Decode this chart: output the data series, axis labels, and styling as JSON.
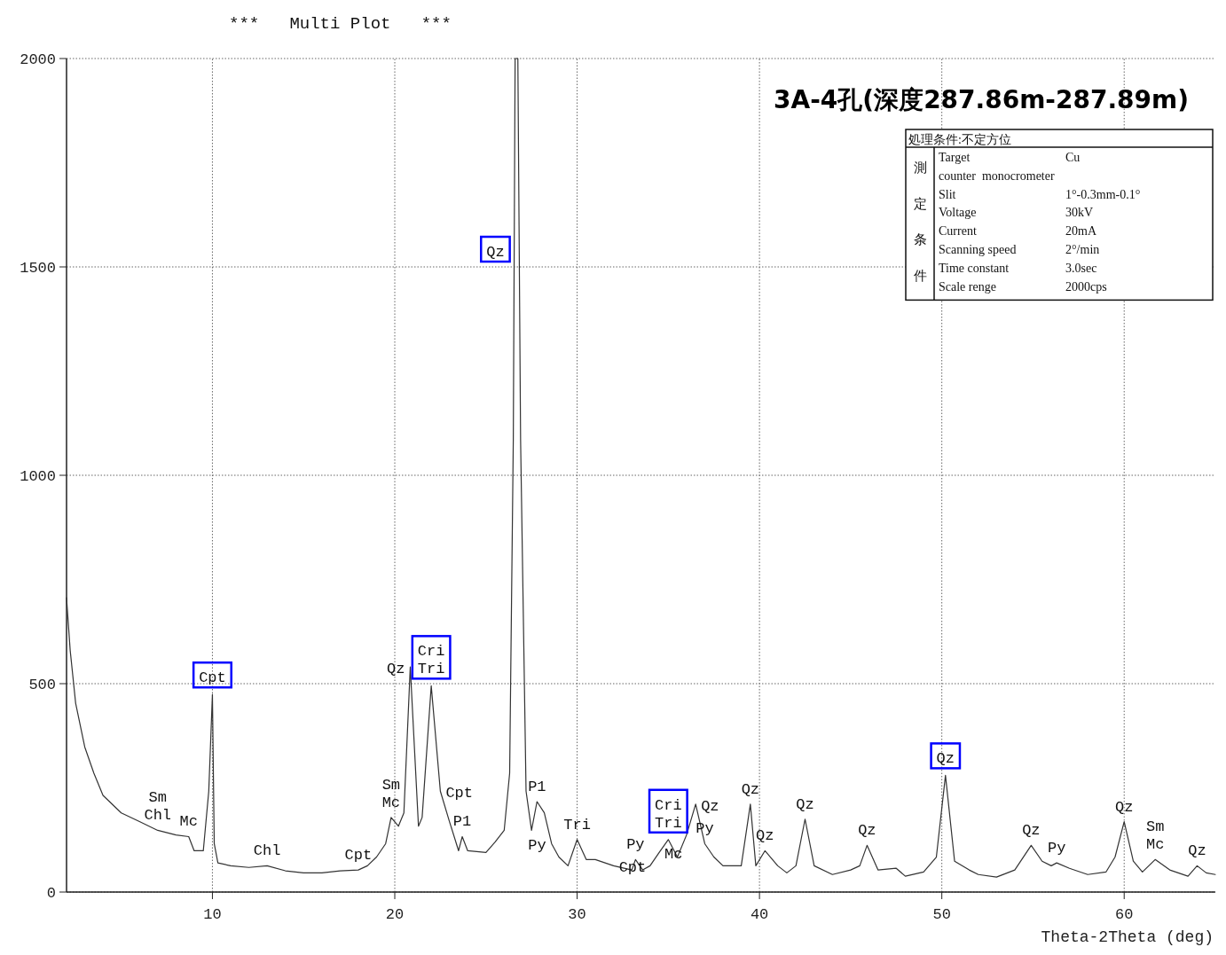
{
  "chart_data": {
    "type": "line",
    "title": "***   Multi Plot   ***",
    "subtitle": "3A-4孔(深度287.86m-287.89m)",
    "xlabel": "Theta-2Theta (deg)",
    "xlim": [
      2,
      65
    ],
    "xticks": [
      10,
      20,
      30,
      40,
      50,
      60
    ],
    "ylim": [
      0,
      2000
    ],
    "yticks": [
      0,
      500,
      1000,
      1500,
      2000
    ],
    "grid": true,
    "marker": "none",
    "line_style": "solid",
    "series": [
      {
        "color": "#333333",
        "x": [
          2,
          2.2,
          2.5,
          3,
          3.5,
          4,
          5,
          6,
          7,
          8,
          8.7,
          9,
          9.5,
          9.8,
          10,
          10.1,
          10.3,
          11,
          12,
          13,
          14,
          15,
          16,
          17,
          18,
          18.5,
          19,
          19.5,
          19.8,
          20.2,
          20.5,
          20.85,
          21.3,
          21.5,
          22,
          22.5,
          23,
          23.5,
          23.7,
          24,
          25,
          25.5,
          26,
          26.3,
          26.5,
          26.6,
          26.75,
          26.9,
          27.2,
          27.5,
          27.8,
          28.2,
          28.6,
          29,
          29.5,
          30,
          30.5,
          31,
          32,
          33,
          33.2,
          33.6,
          34,
          34.5,
          35,
          35.5,
          36,
          36.5,
          37,
          37.5,
          38,
          39,
          39.5,
          39.8,
          40.3,
          41,
          41.5,
          42,
          42.5,
          43,
          44,
          45,
          45.5,
          45.9,
          46.5,
          47.5,
          48,
          49,
          49.7,
          50.2,
          50.7,
          51.5,
          52,
          53,
          54,
          54.9,
          55.5,
          56,
          56.3,
          57,
          58,
          59,
          59.5,
          60,
          60.5,
          61,
          61.7,
          62.5,
          63.5,
          64,
          64.5,
          65
        ],
        "values": [
          706,
          580,
          453,
          348,
          285,
          232,
          190,
          169,
          148,
          137,
          133,
          99,
          99,
          242,
          474,
          116,
          70,
          63,
          59,
          63,
          51,
          46,
          46,
          51,
          53,
          63,
          84,
          116,
          179,
          158,
          190,
          540,
          158,
          179,
          495,
          242,
          169,
          99,
          133,
          99,
          95,
          120,
          148,
          285,
          1085,
          2000,
          2000,
          1085,
          242,
          148,
          217,
          190,
          116,
          84,
          63,
          126,
          78,
          78,
          63,
          53,
          78,
          53,
          63,
          95,
          126,
          84,
          137,
          211,
          116,
          84,
          63,
          63,
          211,
          63,
          99,
          63,
          46,
          63,
          175,
          63,
          42,
          53,
          63,
          112,
          53,
          57,
          38,
          48,
          84,
          280,
          74,
          53,
          42,
          36,
          53,
          112,
          74,
          63,
          70,
          57,
          42,
          48,
          84,
          169,
          74,
          48,
          78,
          53,
          38,
          63,
          46,
          42
        ]
      }
    ],
    "annotations": [
      {
        "text": "Cpt",
        "x": 10,
        "y": 474
      },
      {
        "text": "Sm\nChl",
        "x": 7,
        "y": 148
      },
      {
        "text": "Mc",
        "x": 8.7,
        "y": 133
      },
      {
        "text": "Chl",
        "x": 13,
        "y": 63
      },
      {
        "text": "Cpt",
        "x": 18,
        "y": 53
      },
      {
        "text": "Sm\nMc",
        "x": 19.8,
        "y": 179
      },
      {
        "text": "Qz",
        "x": 20.85,
        "y": 540
      },
      {
        "text": "Cri\nTri",
        "x": 22,
        "y": 495
      },
      {
        "text": "Cpt",
        "x": 22.5,
        "y": 242
      },
      {
        "text": "P1",
        "x": 23.7,
        "y": 133
      },
      {
        "text": "Qz",
        "x": 26.55,
        "y": 1542.5
      },
      {
        "text": "P1",
        "x": 27.8,
        "y": 217
      },
      {
        "text": "Py",
        "x": 28.6,
        "y": 116
      },
      {
        "text": "Tri",
        "x": 30,
        "y": 126
      },
      {
        "text": "Cpt",
        "x": 32,
        "y": 63
      },
      {
        "text": "Py",
        "x": 33.2,
        "y": 78
      },
      {
        "text": "Mc",
        "x": 34.5,
        "y": 95
      },
      {
        "text": "Cri\nTri",
        "x": 35,
        "y": 126
      },
      {
        "text": "Qz",
        "x": 36.5,
        "y": 211
      },
      {
        "text": "Py",
        "x": 37,
        "y": 116
      },
      {
        "text": "Qz",
        "x": 39.5,
        "y": 211
      },
      {
        "text": "Qz",
        "x": 40.3,
        "y": 99
      },
      {
        "text": "Qz",
        "x": 42.5,
        "y": 175
      },
      {
        "text": "Qz",
        "x": 45.9,
        "y": 112
      },
      {
        "text": "Qz",
        "x": 50.2,
        "y": 280
      },
      {
        "text": "Qz",
        "x": 54.9,
        "y": 112
      },
      {
        "text": "Py",
        "x": 56.3,
        "y": 70
      },
      {
        "text": "Qz",
        "x": 60,
        "y": 169
      },
      {
        "text": "Sm\nMc",
        "x": 61.7,
        "y": 78
      },
      {
        "text": "Qz",
        "x": 64,
        "y": 63
      },
      "処理条件:不定方位",
      "測定条件",
      "Target\tCu",
      "counter  monocrometer",
      "Slit\t1°-0.3mm-0.1°",
      "Voltage\t30kV",
      "Current\t20mA",
      "Scanning speed\t2°/min",
      "Time constant\t3.0sec",
      "Scale renge\t2000cps"
    ]
  }
}
